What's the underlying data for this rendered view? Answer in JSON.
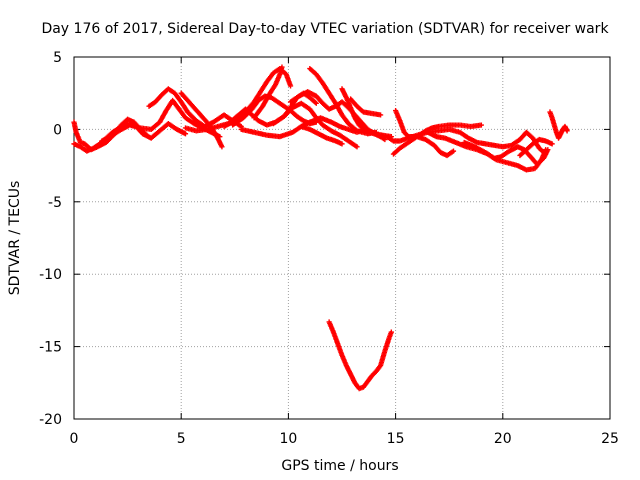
{
  "chart_data": {
    "type": "scatter",
    "title": "Day 176 of 2017, Sidereal Day-to-day VTEC variation (SDTVAR) for receiver wark",
    "xlabel": "GPS time / hours",
    "ylabel": "SDTVAR / TECUs",
    "xlim": [
      0,
      25
    ],
    "ylim": [
      -20,
      5
    ],
    "x_ticks": [
      0,
      5,
      10,
      15,
      20,
      25
    ],
    "x_tick_labels": [
      "0",
      "5",
      "10",
      "15",
      "20",
      "25"
    ],
    "y_ticks": [
      5,
      0,
      -5,
      -10,
      -15,
      -20
    ],
    "y_tick_labels": [
      "5",
      "0",
      "-5",
      "-10",
      "-15",
      "-20"
    ],
    "grid": true,
    "marker": "+",
    "series": [
      {
        "name": "s1",
        "color": "#ff0000",
        "points": [
          [
            0.0,
            0.5
          ],
          [
            0.1,
            -0.2
          ],
          [
            0.3,
            -0.9
          ],
          [
            0.5,
            -1.0
          ],
          [
            0.8,
            -1.4
          ],
          [
            1.1,
            -1.2
          ],
          [
            1.5,
            -0.9
          ],
          [
            1.9,
            -0.3
          ],
          [
            2.2,
            0.3
          ],
          [
            2.5,
            0.7
          ],
          [
            2.8,
            0.5
          ],
          [
            3.1,
            0.0
          ],
          [
            3.4,
            -0.4
          ]
        ]
      },
      {
        "name": "s2",
        "color": "#ff0000",
        "points": [
          [
            0.0,
            -1.0
          ],
          [
            0.3,
            -1.2
          ],
          [
            0.6,
            -1.5
          ],
          [
            0.9,
            -1.3
          ],
          [
            1.2,
            -1.0
          ],
          [
            1.5,
            -0.6
          ],
          [
            1.8,
            -0.2
          ],
          [
            2.1,
            0.1
          ],
          [
            2.5,
            0.4
          ],
          [
            2.9,
            0.2
          ],
          [
            3.2,
            -0.3
          ],
          [
            3.6,
            -0.6
          ],
          [
            4.0,
            -0.1
          ],
          [
            4.4,
            0.4
          ],
          [
            4.8,
            0.0
          ],
          [
            5.2,
            -0.3
          ]
        ]
      },
      {
        "name": "s3",
        "color": "#ff0000",
        "points": [
          [
            1.3,
            -0.8
          ],
          [
            1.7,
            -0.5
          ],
          [
            2.1,
            -0.1
          ],
          [
            2.6,
            0.3
          ],
          [
            3.1,
            0.1
          ],
          [
            3.6,
            0.0
          ],
          [
            4.0,
            0.5
          ],
          [
            4.3,
            1.3
          ],
          [
            4.6,
            2.0
          ],
          [
            4.9,
            1.4
          ],
          [
            5.2,
            0.8
          ],
          [
            5.6,
            0.4
          ],
          [
            6.0,
            0.1
          ],
          [
            6.4,
            -0.2
          ],
          [
            6.8,
            -0.5
          ]
        ]
      },
      {
        "name": "s4",
        "color": "#ff0000",
        "points": [
          [
            3.5,
            1.6
          ],
          [
            3.8,
            1.9
          ],
          [
            4.1,
            2.4
          ],
          [
            4.4,
            2.8
          ],
          [
            4.7,
            2.5
          ],
          [
            5.0,
            1.9
          ],
          [
            5.3,
            1.2
          ],
          [
            5.7,
            0.6
          ],
          [
            6.1,
            0.2
          ],
          [
            6.5,
            0.5
          ],
          [
            7.0,
            1.0
          ],
          [
            7.4,
            0.6
          ],
          [
            7.8,
            0.2
          ]
        ]
      },
      {
        "name": "s5",
        "color": "#ff0000",
        "points": [
          [
            5.0,
            2.5
          ],
          [
            5.3,
            2.0
          ],
          [
            5.6,
            1.5
          ],
          [
            5.9,
            1.0
          ],
          [
            6.2,
            0.5
          ],
          [
            6.5,
            -0.1
          ],
          [
            6.7,
            -0.6
          ],
          [
            6.9,
            -1.2
          ]
        ]
      },
      {
        "name": "s6",
        "color": "#ff0000",
        "points": [
          [
            5.2,
            0.1
          ],
          [
            5.7,
            -0.1
          ],
          [
            6.2,
            0.0
          ],
          [
            6.7,
            0.2
          ],
          [
            7.2,
            0.4
          ],
          [
            7.6,
            0.9
          ],
          [
            8.0,
            1.4
          ],
          [
            8.3,
            1.0
          ],
          [
            8.6,
            0.6
          ],
          [
            9.0,
            0.3
          ],
          [
            9.4,
            0.5
          ],
          [
            9.8,
            0.9
          ],
          [
            10.1,
            1.5
          ],
          [
            10.4,
            2.2
          ],
          [
            10.7,
            2.5
          ],
          [
            11.0,
            2.2
          ],
          [
            11.3,
            1.8
          ]
        ]
      },
      {
        "name": "s7",
        "color": "#ff0000",
        "points": [
          [
            7.0,
            0.2
          ],
          [
            7.5,
            0.6
          ],
          [
            8.0,
            1.2
          ],
          [
            8.4,
            1.9
          ],
          [
            8.7,
            2.6
          ],
          [
            9.0,
            3.3
          ],
          [
            9.3,
            3.9
          ],
          [
            9.6,
            4.2
          ],
          [
            9.9,
            3.8
          ],
          [
            10.1,
            3.0
          ]
        ]
      },
      {
        "name": "s8",
        "color": "#ff0000",
        "points": [
          [
            7.4,
            0.3
          ],
          [
            7.9,
            0.8
          ],
          [
            8.3,
            1.4
          ],
          [
            8.6,
            2.0
          ],
          [
            8.9,
            2.3
          ],
          [
            9.2,
            2.2
          ],
          [
            9.5,
            1.9
          ],
          [
            9.8,
            1.6
          ],
          [
            10.1,
            1.3
          ],
          [
            10.4,
            0.9
          ],
          [
            10.7,
            0.6
          ],
          [
            11.0,
            0.4
          ],
          [
            11.3,
            0.5
          ]
        ]
      },
      {
        "name": "s9",
        "color": "#ff0000",
        "points": [
          [
            8.4,
            0.8
          ],
          [
            8.8,
            1.6
          ],
          [
            9.1,
            2.4
          ],
          [
            9.4,
            3.1
          ],
          [
            9.6,
            3.8
          ],
          [
            9.7,
            4.3
          ]
        ]
      },
      {
        "name": "s10",
        "color": "#ff0000",
        "points": [
          [
            7.8,
            0.0
          ],
          [
            8.4,
            -0.2
          ],
          [
            9.0,
            -0.4
          ],
          [
            9.6,
            -0.5
          ],
          [
            10.2,
            -0.2
          ],
          [
            10.6,
            0.2
          ],
          [
            11.0,
            0.5
          ],
          [
            11.5,
            0.8
          ],
          [
            12.0,
            0.5
          ],
          [
            12.4,
            0.2
          ],
          [
            12.8,
            0.0
          ],
          [
            13.2,
            -0.2
          ],
          [
            13.6,
            0.0
          ],
          [
            14.1,
            -0.3
          ],
          [
            14.5,
            -0.7
          ]
        ]
      },
      {
        "name": "s11",
        "color": "#ff0000",
        "points": [
          [
            9.3,
            0.4
          ],
          [
            9.8,
            0.9
          ],
          [
            10.2,
            1.5
          ],
          [
            10.6,
            1.8
          ],
          [
            11.0,
            1.4
          ],
          [
            11.3,
            0.8
          ],
          [
            11.6,
            0.3
          ],
          [
            12.0,
            -0.1
          ],
          [
            12.4,
            -0.4
          ],
          [
            12.8,
            -0.8
          ],
          [
            13.2,
            -1.2
          ]
        ]
      },
      {
        "name": "s12",
        "color": "#ff0000",
        "points": [
          [
            10.1,
            1.9
          ],
          [
            10.5,
            2.3
          ],
          [
            10.9,
            2.6
          ],
          [
            11.3,
            2.3
          ],
          [
            11.6,
            1.8
          ],
          [
            11.9,
            1.4
          ],
          [
            12.2,
            1.6
          ],
          [
            12.5,
            1.9
          ],
          [
            12.8,
            1.5
          ],
          [
            13.1,
            1.0
          ],
          [
            13.4,
            0.5
          ],
          [
            13.7,
            0.0
          ],
          [
            14.0,
            -0.3
          ],
          [
            14.3,
            -0.5
          ]
        ]
      },
      {
        "name": "s13",
        "color": "#ff0000",
        "points": [
          [
            10.6,
            0.2
          ],
          [
            11.0,
            0.0
          ],
          [
            11.4,
            -0.3
          ],
          [
            11.8,
            -0.6
          ],
          [
            12.2,
            -0.8
          ],
          [
            12.5,
            -1.0
          ]
        ]
      },
      {
        "name": "s14",
        "color": "#ff0000",
        "points": [
          [
            11.0,
            4.2
          ],
          [
            11.3,
            3.8
          ],
          [
            11.6,
            3.2
          ],
          [
            11.9,
            2.5
          ],
          [
            12.2,
            1.8
          ],
          [
            12.5,
            1.0
          ],
          [
            12.8,
            0.4
          ],
          [
            13.2,
            -0.1
          ],
          [
            13.7,
            -0.3
          ],
          [
            14.1,
            -0.2
          ]
        ]
      },
      {
        "name": "s15",
        "color": "#ff0000",
        "points": [
          [
            12.5,
            2.8
          ],
          [
            12.7,
            2.2
          ],
          [
            12.9,
            1.5
          ],
          [
            13.1,
            0.8
          ],
          [
            13.3,
            0.3
          ],
          [
            13.6,
            -0.1
          ],
          [
            14.0,
            -0.3
          ],
          [
            14.4,
            -0.4
          ],
          [
            14.8,
            -0.5
          ]
        ]
      },
      {
        "name": "s16",
        "color": "#ff0000",
        "points": [
          [
            12.9,
            2.1
          ],
          [
            13.2,
            1.6
          ],
          [
            13.5,
            1.2
          ],
          [
            13.9,
            1.1
          ],
          [
            14.3,
            1.0
          ]
        ]
      },
      {
        "name": "s17",
        "color": "#ff0000",
        "points": [
          [
            14.6,
            -0.5
          ],
          [
            14.9,
            -0.8
          ],
          [
            15.2,
            -0.8
          ],
          [
            15.6,
            -0.6
          ],
          [
            16.0,
            -0.4
          ],
          [
            16.5,
            -0.2
          ],
          [
            17.0,
            -0.1
          ],
          [
            17.5,
            0.0
          ],
          [
            18.0,
            -0.2
          ],
          [
            18.4,
            -0.6
          ],
          [
            18.8,
            -0.9
          ],
          [
            19.2,
            -1.0
          ],
          [
            19.6,
            -1.1
          ],
          [
            20.0,
            -1.2
          ],
          [
            20.4,
            -1.1
          ],
          [
            20.8,
            -0.7
          ],
          [
            21.1,
            -0.2
          ],
          [
            21.4,
            -0.6
          ],
          [
            21.7,
            -1.3
          ],
          [
            22.0,
            -1.7
          ]
        ]
      },
      {
        "name": "s18",
        "color": "#ff0000",
        "points": [
          [
            14.9,
            -1.7
          ],
          [
            15.2,
            -1.3
          ],
          [
            15.5,
            -1.0
          ],
          [
            15.8,
            -0.7
          ],
          [
            16.1,
            -0.4
          ],
          [
            16.4,
            -0.1
          ],
          [
            16.7,
            0.1
          ],
          [
            17.0,
            0.2
          ],
          [
            17.5,
            0.3
          ],
          [
            18.0,
            0.3
          ],
          [
            18.5,
            0.2
          ],
          [
            19.0,
            0.3
          ]
        ]
      },
      {
        "name": "s19",
        "color": "#ff0000",
        "points": [
          [
            16.5,
            -0.2
          ],
          [
            16.9,
            -0.5
          ],
          [
            17.3,
            -0.6
          ],
          [
            17.8,
            -0.9
          ],
          [
            18.3,
            -1.2
          ],
          [
            18.8,
            -1.4
          ],
          [
            19.3,
            -1.7
          ],
          [
            19.6,
            -2.0
          ],
          [
            19.9,
            -1.9
          ],
          [
            20.3,
            -1.5
          ],
          [
            20.7,
            -1.2
          ],
          [
            21.0,
            -1.4
          ],
          [
            21.3,
            -1.9
          ],
          [
            21.6,
            -2.4
          ],
          [
            21.9,
            -2.0
          ],
          [
            22.1,
            -1.4
          ]
        ]
      },
      {
        "name": "s20",
        "color": "#ff0000",
        "points": [
          [
            15.0,
            1.3
          ],
          [
            15.2,
            0.6
          ],
          [
            15.4,
            -0.2
          ],
          [
            15.6,
            -0.5
          ],
          [
            16.0,
            -0.5
          ],
          [
            16.4,
            -0.7
          ],
          [
            16.8,
            -1.1
          ],
          [
            17.1,
            -1.6
          ],
          [
            17.4,
            -1.8
          ],
          [
            17.7,
            -1.5
          ]
        ]
      },
      {
        "name": "s21",
        "color": "#ff0000",
        "points": [
          [
            18.2,
            -0.9
          ],
          [
            18.7,
            -1.2
          ],
          [
            19.2,
            -1.6
          ],
          [
            19.7,
            -2.1
          ],
          [
            20.2,
            -2.3
          ],
          [
            20.7,
            -2.5
          ],
          [
            21.1,
            -2.8
          ],
          [
            21.5,
            -2.7
          ],
          [
            21.8,
            -2.1
          ],
          [
            22.0,
            -1.4
          ]
        ]
      },
      {
        "name": "s22",
        "color": "#ff0000",
        "points": [
          [
            20.8,
            -1.8
          ],
          [
            21.1,
            -1.4
          ],
          [
            21.4,
            -1.0
          ],
          [
            21.7,
            -0.7
          ],
          [
            22.0,
            -0.8
          ],
          [
            22.3,
            -1.0
          ]
        ]
      },
      {
        "name": "s23",
        "color": "#ff0000",
        "points": [
          [
            22.2,
            1.2
          ],
          [
            22.3,
            0.8
          ],
          [
            22.4,
            0.3
          ],
          [
            22.5,
            -0.2
          ],
          [
            22.6,
            -0.6
          ],
          [
            22.7,
            -0.3
          ],
          [
            22.8,
            0.0
          ],
          [
            22.9,
            0.2
          ],
          [
            23.0,
            -0.1
          ]
        ]
      },
      {
        "name": "s24",
        "color": "#ff0000",
        "points": [
          [
            11.9,
            -13.3
          ],
          [
            12.1,
            -14.0
          ],
          [
            12.3,
            -14.8
          ],
          [
            12.5,
            -15.6
          ],
          [
            12.7,
            -16.3
          ],
          [
            12.9,
            -16.9
          ],
          [
            13.1,
            -17.5
          ],
          [
            13.3,
            -17.9
          ],
          [
            13.5,
            -17.8
          ],
          [
            13.7,
            -17.4
          ],
          [
            13.9,
            -17.0
          ],
          [
            14.1,
            -16.7
          ],
          [
            14.3,
            -16.3
          ],
          [
            14.5,
            -15.3
          ],
          [
            14.7,
            -14.4
          ],
          [
            14.8,
            -14.0
          ]
        ]
      }
    ]
  }
}
